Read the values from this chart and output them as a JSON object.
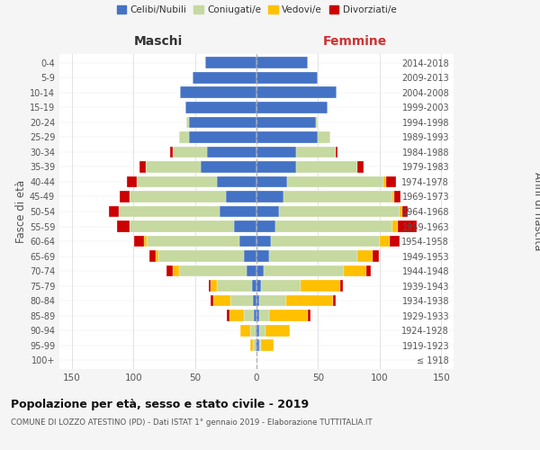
{
  "age_groups": [
    "100+",
    "95-99",
    "90-94",
    "85-89",
    "80-84",
    "75-79",
    "70-74",
    "65-69",
    "60-64",
    "55-59",
    "50-54",
    "45-49",
    "40-44",
    "35-39",
    "30-34",
    "25-29",
    "20-24",
    "15-19",
    "10-14",
    "5-9",
    "0-4"
  ],
  "birth_years": [
    "≤ 1918",
    "1919-1923",
    "1924-1928",
    "1929-1933",
    "1934-1938",
    "1939-1943",
    "1944-1948",
    "1949-1953",
    "1954-1958",
    "1959-1963",
    "1964-1968",
    "1969-1973",
    "1974-1978",
    "1979-1983",
    "1984-1988",
    "1989-1993",
    "1994-1998",
    "1999-2003",
    "2004-2008",
    "2009-2013",
    "2014-2018"
  ],
  "colors": {
    "celibi": "#4472c4",
    "coniugati": "#c5d9a0",
    "vedovi": "#ffc000",
    "divorziati": "#cc0000"
  },
  "maschi_celibi": [
    0,
    1,
    1,
    2,
    3,
    4,
    8,
    10,
    14,
    18,
    30,
    25,
    32,
    45,
    40,
    55,
    55,
    58,
    62,
    52,
    42
  ],
  "maschi_coniugati": [
    0,
    2,
    4,
    8,
    18,
    28,
    55,
    70,
    75,
    85,
    82,
    78,
    65,
    45,
    28,
    8,
    2,
    0,
    0,
    0,
    0
  ],
  "maschi_vedovi": [
    0,
    2,
    8,
    12,
    14,
    5,
    5,
    2,
    2,
    0,
    0,
    0,
    0,
    0,
    0,
    0,
    0,
    0,
    0,
    0,
    0
  ],
  "maschi_divorziati": [
    0,
    0,
    0,
    2,
    2,
    2,
    5,
    5,
    8,
    10,
    8,
    8,
    8,
    5,
    2,
    0,
    0,
    0,
    0,
    0,
    0
  ],
  "femmine_nubili": [
    0,
    2,
    2,
    2,
    2,
    4,
    6,
    10,
    12,
    15,
    18,
    22,
    25,
    32,
    32,
    50,
    48,
    58,
    65,
    50,
    42
  ],
  "femmine_coniugate": [
    0,
    2,
    5,
    8,
    22,
    32,
    65,
    72,
    88,
    95,
    98,
    88,
    78,
    50,
    32,
    10,
    2,
    0,
    0,
    0,
    0
  ],
  "femmine_vedove": [
    0,
    10,
    20,
    32,
    38,
    32,
    18,
    12,
    8,
    5,
    2,
    2,
    2,
    0,
    0,
    0,
    0,
    0,
    0,
    0,
    0
  ],
  "femmine_divorziate": [
    0,
    0,
    0,
    2,
    2,
    2,
    4,
    5,
    8,
    15,
    5,
    5,
    8,
    5,
    2,
    0,
    0,
    0,
    0,
    0,
    0
  ],
  "xlim": 160,
  "title": "Popolazione per età, sesso e stato civile - 2019",
  "subtitle": "COMUNE DI LOZZO ATESTINO (PD) - Dati ISTAT 1° gennaio 2019 - Elaborazione TUTTITALIA.IT",
  "ylabel_left": "Fasce di età",
  "ylabel_right": "Anni di nascita",
  "label_maschi": "Maschi",
  "label_femmine": "Femmine",
  "legend_labels": [
    "Celibi/Nubili",
    "Coniugati/e",
    "Vedovi/e",
    "Divorziati/e"
  ],
  "bg_color": "#f5f5f5",
  "plot_bg_color": "#ffffff"
}
